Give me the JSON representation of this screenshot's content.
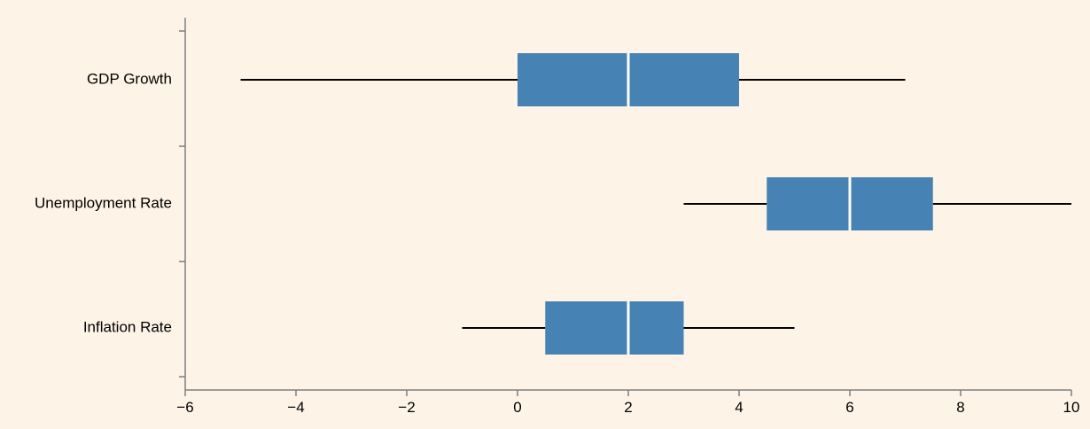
{
  "chart_data": {
    "type": "boxplot",
    "orientation": "horizontal",
    "title": "",
    "xlabel": "",
    "ylabel": "",
    "xlim": [
      -6,
      10
    ],
    "xticks": [
      -6,
      -4,
      -2,
      0,
      2,
      4,
      6,
      8,
      10
    ],
    "xtick_labels": [
      "−6",
      "−4",
      "−2",
      "0",
      "2",
      "4",
      "6",
      "8",
      "10"
    ],
    "categories": [
      "GDP Growth",
      "Unemployment Rate",
      "Inflation Rate"
    ],
    "boxes": [
      {
        "category": "GDP Growth",
        "min": -5,
        "q1": 0,
        "median": 2,
        "q3": 4,
        "max": 7
      },
      {
        "category": "Unemployment Rate",
        "min": 3,
        "q1": 4.5,
        "median": 6,
        "q3": 7.5,
        "max": 10
      },
      {
        "category": "Inflation Rate",
        "min": -1,
        "q1": 0.5,
        "median": 2,
        "q3": 3,
        "max": 5
      }
    ],
    "grid": false,
    "colors": {
      "box": "#4682b4",
      "median": "#ffffff",
      "whisker": "#000000",
      "axis": "#7f7f7f",
      "background": "#fdf3e6"
    }
  }
}
